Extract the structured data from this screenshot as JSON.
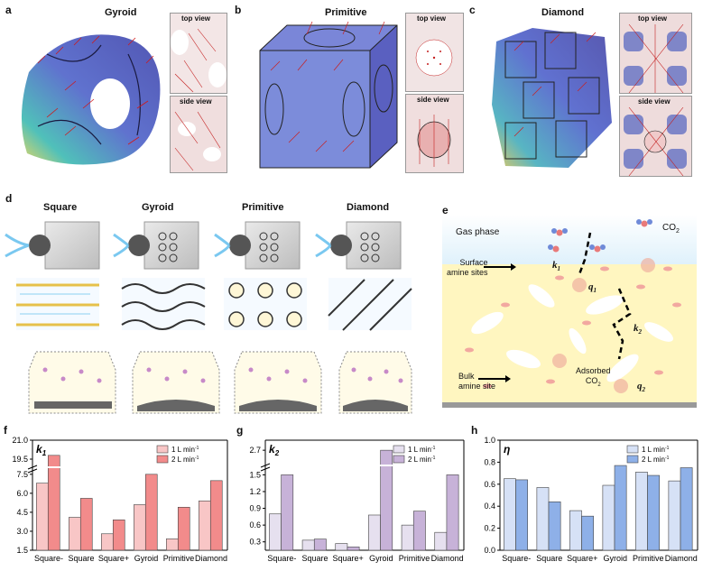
{
  "panels": {
    "a": {
      "label": "a",
      "title": "Gyroid",
      "top_view": "top view",
      "side_view": "side view"
    },
    "b": {
      "label": "b",
      "title": "Primitive",
      "top_view": "top view",
      "side_view": "side view"
    },
    "c": {
      "label": "c",
      "title": "Diamond",
      "top_view": "top view",
      "side_view": "side view"
    },
    "d": {
      "label": "d",
      "columns": [
        "Square",
        "Gyroid",
        "Primitive",
        "Diamond"
      ]
    },
    "e": {
      "label": "e",
      "gas_phase": "Gas phase",
      "co2": "CO",
      "co2_sub": "2",
      "surface_sites_line1": "Surface",
      "surface_sites_line2": "amine sites",
      "k1": "k",
      "k1_sub": "1",
      "q1": "q",
      "q1_sub": "1",
      "k2": "k",
      "k2_sub": "2",
      "adsorbed_line1": "Adsorbed",
      "adsorbed_line2": "CO",
      "adsorbed_sub": "2",
      "q2": "q",
      "q2_sub": "2",
      "bulk_line1": "Bulk",
      "bulk_line2": "amine site"
    },
    "f": {
      "label": "f"
    },
    "g": {
      "label": "g"
    },
    "h": {
      "label": "h"
    }
  },
  "chart_data": [
    {
      "type": "bar",
      "panel": "f",
      "corner_label": "k",
      "corner_sub": "1",
      "categories": [
        "Square-",
        "Square",
        "Square+",
        "Gyroid",
        "Primitive",
        "Diamond"
      ],
      "series": [
        {
          "name": "1 L min",
          "values": [
            6.8,
            4.1,
            2.8,
            5.1,
            2.4,
            5.4
          ],
          "color": "#f8c6c6"
        },
        {
          "name": "2 L min",
          "values": [
            19.8,
            5.6,
            3.9,
            7.5,
            4.9,
            7.0
          ],
          "color": "#f28b8b"
        }
      ],
      "legend_sup": "-1",
      "yticks": [
        "1.5",
        "3.0",
        "4.5",
        "6.0",
        "7.5",
        "19.5",
        "21.0"
      ],
      "broken_axis": true
    },
    {
      "type": "bar",
      "panel": "g",
      "corner_label": "k",
      "corner_sub": "2",
      "categories": [
        "Square-",
        "Square",
        "Square+",
        "Gyroid",
        "Primitive",
        "Diamond"
      ],
      "series": [
        {
          "name": "1 L min",
          "values": [
            0.8,
            0.33,
            0.27,
            0.78,
            0.6,
            0.47
          ],
          "color": "#e6e0ef"
        },
        {
          "name": "2 L min",
          "values": [
            1.5,
            0.35,
            0.21,
            2.7,
            0.85,
            1.5
          ],
          "color": "#c7b2d8"
        }
      ],
      "legend_sup": "-1",
      "yticks": [
        "0.3",
        "0.6",
        "0.9",
        "1.2",
        "1.5",
        "2.7"
      ],
      "broken_axis": true
    },
    {
      "type": "bar",
      "panel": "h",
      "corner_label": "η",
      "categories": [
        "Square-",
        "Square",
        "Square+",
        "Gyroid",
        "Primitive",
        "Diamond"
      ],
      "series": [
        {
          "name": "1 L min",
          "values": [
            0.65,
            0.57,
            0.36,
            0.59,
            0.71,
            0.63
          ],
          "color": "#d6e1f6"
        },
        {
          "name": "2 L min",
          "values": [
            0.64,
            0.44,
            0.31,
            0.77,
            0.68,
            0.75
          ],
          "color": "#8eb0e8"
        }
      ],
      "legend_sup": "-1",
      "yticks": [
        "0.0",
        "0.2",
        "0.4",
        "0.6",
        "0.8",
        "1.0"
      ],
      "ylim": [
        0,
        1.0
      ]
    }
  ]
}
